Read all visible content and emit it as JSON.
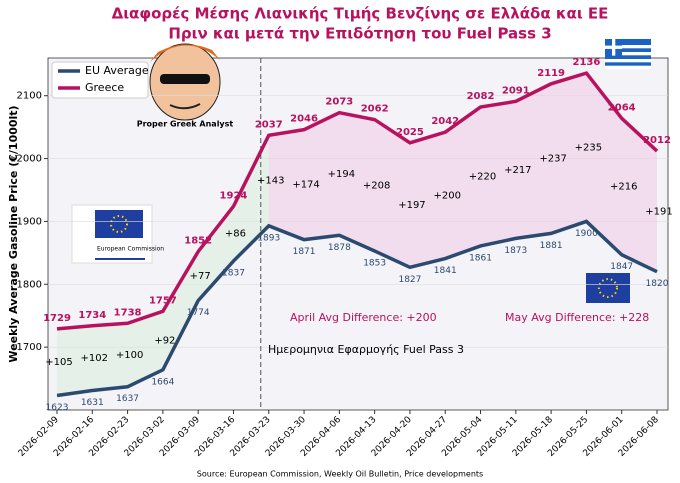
{
  "chart_data": {
    "type": "line",
    "title": "Διαφορές Μέσης Λιανικής Τιμής Βενζίνης σε Ελλάδα και ΕΕ",
    "subtitle": "Πριν και μετά την Επιδότηση του Fuel Pass 3",
    "y_label": "Weekly Average Gasoline Price (€/1000lt)",
    "categories": [
      "2026-02-09",
      "2026-02-16",
      "2026-02-23",
      "2026-03-02",
      "2026-03-09",
      "2026-03-16",
      "2026-03-23",
      "2026-03-30",
      "2026-04-06",
      "2026-04-13",
      "2026-04-20",
      "2026-04-27",
      "2026-05-04",
      "2026-05-11",
      "2026-05-18",
      "2026-05-25",
      "2026-06-01",
      "2026-06-08"
    ],
    "series": [
      {
        "name": "EU Average",
        "color": "#2c4a70",
        "values": [
          1623,
          1631,
          1637,
          1664,
          1774,
          1837,
          1893,
          1871,
          1878,
          1853,
          1827,
          1841,
          1861,
          1873,
          1881,
          1900,
          1847,
          1820
        ]
      },
      {
        "name": "Greece",
        "color": "#b8125f",
        "values": [
          1729,
          1734,
          1738,
          1757,
          1852,
          1924,
          2037,
          2046,
          2073,
          2062,
          2025,
          2042,
          2082,
          2091,
          2119,
          2136,
          2064,
          2012
        ]
      }
    ],
    "differences": [
      105,
      102,
      100,
      92,
      77,
      86,
      143,
      174,
      194,
      208,
      197,
      200,
      220,
      217,
      237,
      235,
      216,
      191
    ],
    "difference_labels": [
      "+105",
      "+102",
      "+100",
      "+92",
      "+77",
      "+86",
      "+143",
      "+174",
      "+194",
      "+208",
      "+197",
      "+200",
      "+220",
      "+217",
      "+237",
      "+235",
      "+216",
      "+191"
    ],
    "event_category": "2026-03-23",
    "event_label": "Ημερομηνια Εφαρμογής Fuel Pass 3",
    "annotations": [
      "April Avg Difference: +200",
      "May Avg Difference: +228"
    ],
    "logo_labels": [
      "Proper Greek Analyst",
      "European Commission"
    ],
    "source": "Source: European Commission, Weekly Oil Bulletin, Price developments",
    "ylim": [
      1600,
      2160
    ],
    "yticks": [
      1700,
      1800,
      1900,
      2000,
      2100
    ],
    "legend": "upper left",
    "grid": true
  }
}
